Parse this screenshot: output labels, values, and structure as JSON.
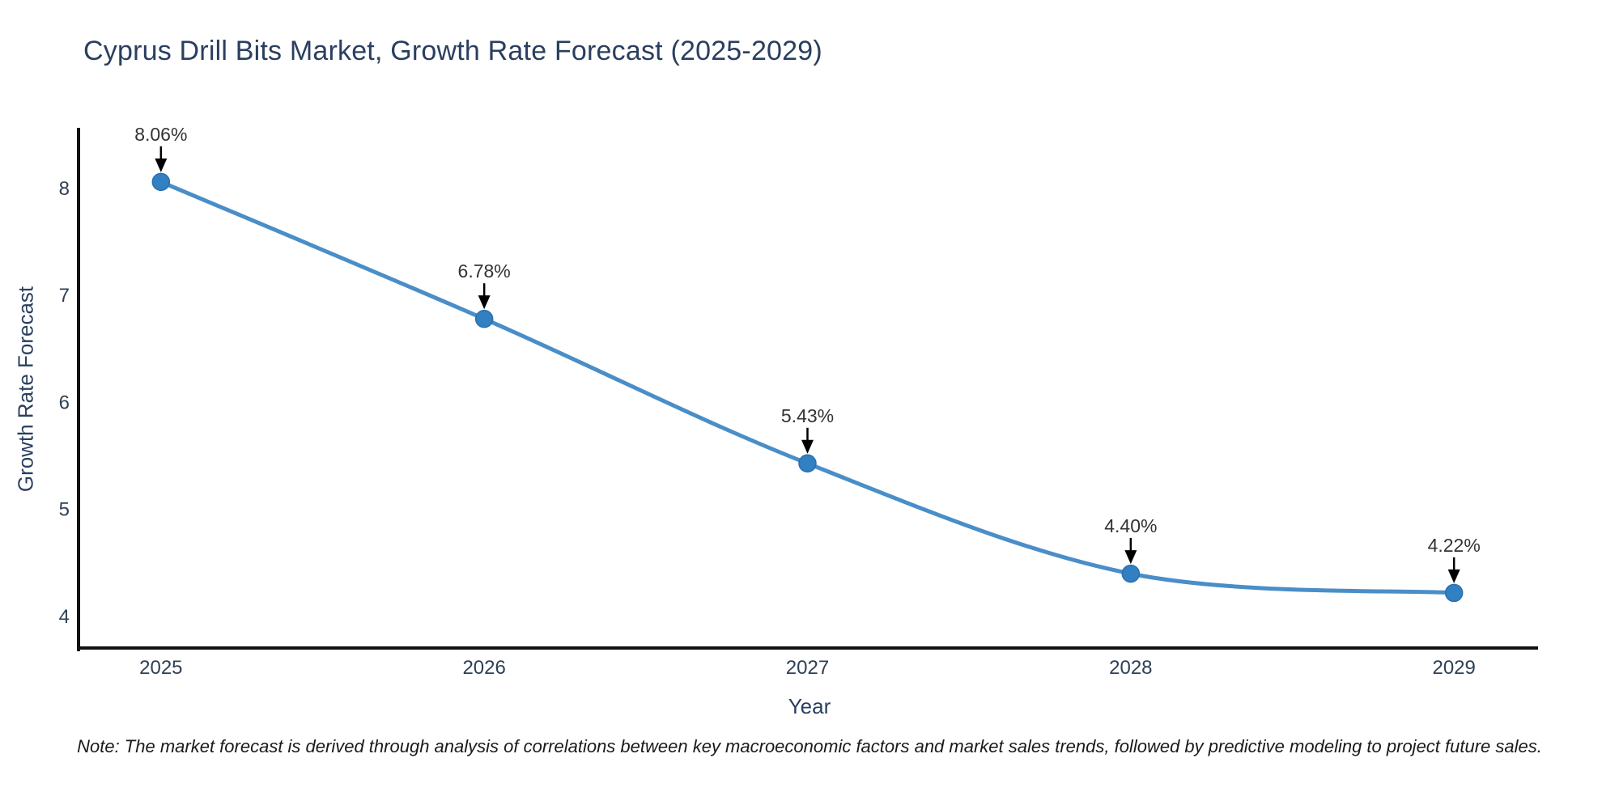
{
  "title": "Cyprus Drill Bits Market, Growth Rate Forecast (2025-2029)",
  "note": "Note: The market forecast is derived through analysis of correlations between key macroeconomic factors and market sales trends, followed by predictive modeling to project future sales.",
  "chart_data": {
    "type": "line",
    "title": "Cyprus Drill Bits Market, Growth Rate Forecast (2025-2029)",
    "xlabel": "Year",
    "ylabel": "Growth Rate Forecast",
    "x": [
      2025,
      2026,
      2027,
      2028,
      2029
    ],
    "y": [
      8.06,
      6.78,
      5.43,
      4.4,
      4.22
    ],
    "point_labels": [
      "8.06%",
      "6.78%",
      "5.43%",
      "4.40%",
      "4.22%"
    ],
    "xticks": [
      2025,
      2026,
      2027,
      2028,
      2029
    ],
    "yticks": [
      8,
      7,
      6,
      5,
      4
    ],
    "xlim": [
      2024.74,
      2029.26
    ],
    "ylim": [
      3.69,
      8.55
    ],
    "line_shape": "spline",
    "grid": false,
    "legend": false,
    "annotation_style": "black-arrow-above-point",
    "colors": {
      "line": "#4a8ec8",
      "marker": "#3180c2",
      "marker_edge": "#2a6fae",
      "axis_line": "#111111",
      "tick_text": "#2f4055",
      "title_text": "#2a3f5f",
      "annotation_text": "#333333",
      "arrow": "#000000",
      "background": "#ffffff"
    }
  }
}
